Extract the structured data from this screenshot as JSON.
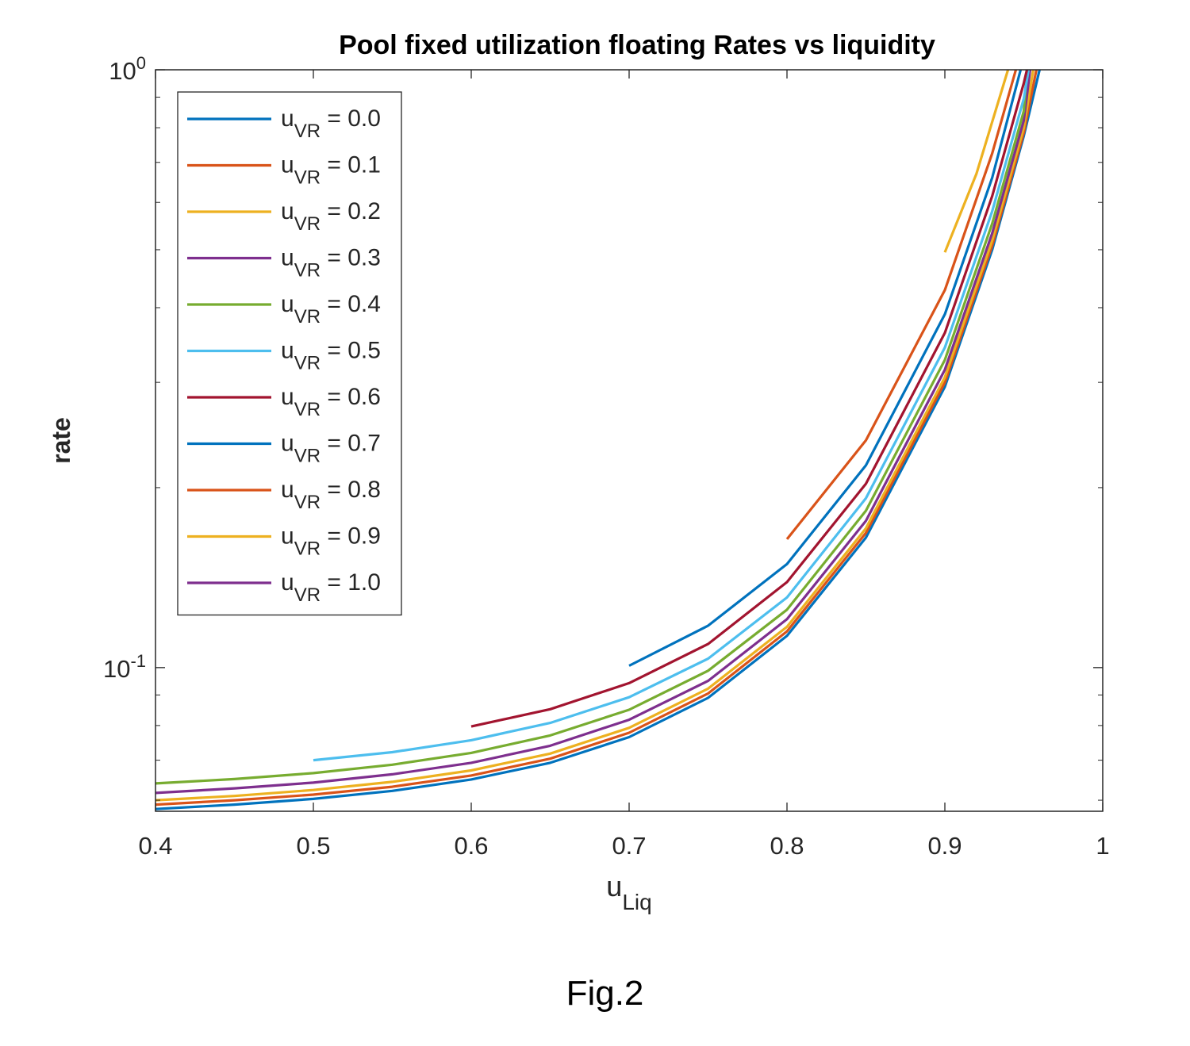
{
  "chart_data": {
    "type": "line",
    "title": "Pool fixed utilization floating Rates vs liquidity",
    "xlabel": {
      "base": "u",
      "subscript": "Liq"
    },
    "ylabel": "rate",
    "yscale": "log",
    "xlim": [
      0.4,
      1.0
    ],
    "ylim": [
      0.0575,
      1.0
    ],
    "grid": false,
    "legend_position": "top-left",
    "x_ticks": [
      {
        "value": 0.4,
        "label": "0.4"
      },
      {
        "value": 0.5,
        "label": "0.5"
      },
      {
        "value": 0.6,
        "label": "0.6"
      },
      {
        "value": 0.7,
        "label": "0.7"
      },
      {
        "value": 0.8,
        "label": "0.8"
      },
      {
        "value": 0.9,
        "label": "0.9"
      },
      {
        "value": 1.0,
        "label": "1"
      }
    ],
    "y_ticks": [
      {
        "value": 1.0,
        "base": "10",
        "exp": "0"
      },
      {
        "value": 0.1,
        "base": "10",
        "exp": "-1"
      }
    ],
    "series": [
      {
        "name": "u_VR = 0.0",
        "legend": {
          "base": "u",
          "sub": "VR",
          "rest": " = 0.0"
        },
        "color": "#0072BD",
        "x_start": 0.4,
        "points": [
          [
            0.4,
            0.058
          ],
          [
            0.45,
            0.059
          ],
          [
            0.5,
            0.0603
          ],
          [
            0.55,
            0.0622
          ],
          [
            0.6,
            0.065
          ],
          [
            0.65,
            0.0693
          ],
          [
            0.7,
            0.0765
          ],
          [
            0.75,
            0.089
          ],
          [
            0.8,
            0.113
          ],
          [
            0.85,
            0.165
          ],
          [
            0.9,
            0.295
          ],
          [
            0.93,
            0.5
          ],
          [
            0.95,
            0.775
          ],
          [
            0.96,
            1.0
          ]
        ]
      },
      {
        "name": "u_VR = 0.1",
        "legend": {
          "base": "u",
          "sub": "VR",
          "rest": " = 0.1"
        },
        "color": "#D95319",
        "x_start": 0.4,
        "points": [
          [
            0.4,
            0.059
          ],
          [
            0.45,
            0.06
          ],
          [
            0.5,
            0.0613
          ],
          [
            0.55,
            0.0632
          ],
          [
            0.6,
            0.066
          ],
          [
            0.65,
            0.0704
          ],
          [
            0.7,
            0.0778
          ],
          [
            0.75,
            0.0905
          ],
          [
            0.8,
            0.115
          ],
          [
            0.85,
            0.168
          ],
          [
            0.9,
            0.3
          ],
          [
            0.93,
            0.508
          ],
          [
            0.95,
            0.785
          ],
          [
            0.958,
            1.0
          ]
        ]
      },
      {
        "name": "u_VR = 0.2",
        "legend": {
          "base": "u",
          "sub": "VR",
          "rest": " = 0.2"
        },
        "color": "#EDB120",
        "x_start": 0.4,
        "points": [
          [
            0.4,
            0.06
          ],
          [
            0.45,
            0.061
          ],
          [
            0.5,
            0.0624
          ],
          [
            0.55,
            0.0644
          ],
          [
            0.6,
            0.0673
          ],
          [
            0.65,
            0.0718
          ],
          [
            0.7,
            0.0793
          ],
          [
            0.75,
            0.0922
          ],
          [
            0.8,
            0.117
          ],
          [
            0.85,
            0.171
          ],
          [
            0.9,
            0.306
          ],
          [
            0.93,
            0.518
          ],
          [
            0.95,
            0.8
          ],
          [
            0.956,
            1.0
          ]
        ]
      },
      {
        "name": "u_VR = 0.3",
        "legend": {
          "base": "u",
          "sub": "VR",
          "rest": " = 0.3"
        },
        "color": "#7E2F8E",
        "x_start": 0.4,
        "points": [
          [
            0.4,
            0.0617
          ],
          [
            0.45,
            0.0628
          ],
          [
            0.5,
            0.0642
          ],
          [
            0.55,
            0.0663
          ],
          [
            0.6,
            0.0693
          ],
          [
            0.65,
            0.074
          ],
          [
            0.7,
            0.0818
          ],
          [
            0.75,
            0.095
          ],
          [
            0.8,
            0.1205
          ],
          [
            0.85,
            0.176
          ],
          [
            0.9,
            0.315
          ],
          [
            0.93,
            0.533
          ],
          [
            0.95,
            0.823
          ],
          [
            0.954,
            1.0
          ]
        ]
      },
      {
        "name": "u_VR = 0.4",
        "legend": {
          "base": "u",
          "sub": "VR",
          "rest": " = 0.4"
        },
        "color": "#77AC30",
        "x_start": 0.4,
        "points": [
          [
            0.4,
            0.064
          ],
          [
            0.45,
            0.0651
          ],
          [
            0.5,
            0.0666
          ],
          [
            0.55,
            0.0688
          ],
          [
            0.6,
            0.072
          ],
          [
            0.65,
            0.077
          ],
          [
            0.7,
            0.085
          ],
          [
            0.75,
            0.0988
          ],
          [
            0.8,
            0.125
          ],
          [
            0.85,
            0.183
          ],
          [
            0.9,
            0.327
          ],
          [
            0.93,
            0.553
          ],
          [
            0.95,
            0.853
          ],
          [
            0.952,
            1.0
          ]
        ]
      },
      {
        "name": "u_VR = 0.5",
        "legend": {
          "base": "u",
          "sub": "VR",
          "rest": " = 0.5"
        },
        "color": "#4DBEEE",
        "x_start": 0.5,
        "points": [
          [
            0.5,
            0.07
          ],
          [
            0.55,
            0.0722
          ],
          [
            0.6,
            0.0756
          ],
          [
            0.65,
            0.0808
          ],
          [
            0.7,
            0.0892
          ],
          [
            0.75,
            0.1035
          ],
          [
            0.8,
            0.131
          ],
          [
            0.85,
            0.192
          ],
          [
            0.9,
            0.343
          ],
          [
            0.93,
            0.58
          ],
          [
            0.95,
            0.895
          ],
          [
            0.953,
            1.0
          ]
        ]
      },
      {
        "name": "u_VR = 0.6",
        "legend": {
          "base": "u",
          "sub": "VR",
          "rest": " = 0.6"
        },
        "color": "#A2142F",
        "x_start": 0.6,
        "points": [
          [
            0.6,
            0.0797
          ],
          [
            0.65,
            0.0852
          ],
          [
            0.7,
            0.0942
          ],
          [
            0.75,
            0.1095
          ],
          [
            0.8,
            0.139
          ],
          [
            0.85,
            0.203
          ],
          [
            0.9,
            0.363
          ],
          [
            0.93,
            0.615
          ],
          [
            0.95,
            0.95
          ],
          [
            0.952,
            1.0
          ]
        ]
      },
      {
        "name": "u_VR = 0.7",
        "legend": {
          "base": "u",
          "sub": "VR",
          "rest": " = 0.7"
        },
        "color": "#0072BD",
        "x_start": 0.7,
        "points": [
          [
            0.7,
            0.1007
          ],
          [
            0.75,
            0.1175
          ],
          [
            0.8,
            0.149
          ],
          [
            0.85,
            0.218
          ],
          [
            0.9,
            0.39
          ],
          [
            0.93,
            0.66
          ],
          [
            0.948,
            1.0
          ]
        ]
      },
      {
        "name": "u_VR = 0.8",
        "legend": {
          "base": "u",
          "sub": "VR",
          "rest": " = 0.8"
        },
        "color": "#D95319",
        "x_start": 0.8,
        "points": [
          [
            0.8,
            0.164
          ],
          [
            0.85,
            0.24
          ],
          [
            0.9,
            0.428
          ],
          [
            0.93,
            0.725
          ],
          [
            0.945,
            1.0
          ]
        ]
      },
      {
        "name": "u_VR = 0.9",
        "legend": {
          "base": "u",
          "sub": "VR",
          "rest": " = 0.9"
        },
        "color": "#EDB120",
        "x_start": 0.9,
        "points": [
          [
            0.9,
            0.495
          ],
          [
            0.92,
            0.67
          ],
          [
            0.94,
            1.0
          ]
        ]
      },
      {
        "name": "u_VR = 1.0",
        "legend": {
          "base": "u",
          "sub": "VR",
          "rest": " = 1.0"
        },
        "color": "#7E2F8E",
        "x_start": 1.0,
        "points": []
      }
    ]
  },
  "caption": "Fig.2"
}
